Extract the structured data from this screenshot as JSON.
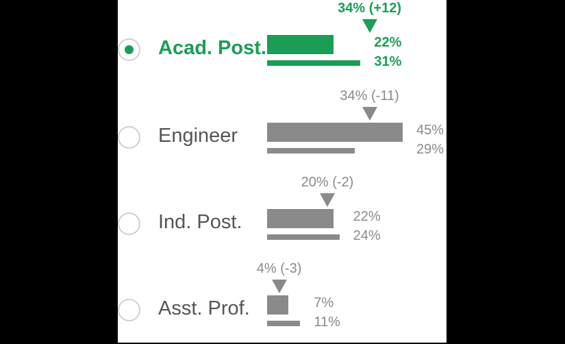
{
  "colors": {
    "selected": "#1a9e55",
    "default": "#8a8a8a",
    "label": "#555555"
  },
  "chart_data": {
    "type": "bar",
    "categories": [
      "Acad. Post.",
      "Engineer",
      "Ind. Post.",
      "Asst. Prof."
    ],
    "selected_index": 0,
    "series": [
      {
        "values": [
          22,
          45,
          22,
          7
        ],
        "labels": [
          "22%",
          "45%",
          "22%",
          "7%"
        ]
      },
      {
        "values": [
          31,
          29,
          24,
          11
        ],
        "labels": [
          "31%",
          "29%",
          "24%",
          "11%"
        ]
      }
    ],
    "markers": [
      {
        "value": 34,
        "label": "34% (+12)"
      },
      {
        "value": 34,
        "label": "34% (-11)"
      },
      {
        "value": 20,
        "label": "20% (-2)"
      },
      {
        "value": 4,
        "label": "4% (-3)"
      }
    ],
    "xlim": [
      0,
      45
    ]
  }
}
